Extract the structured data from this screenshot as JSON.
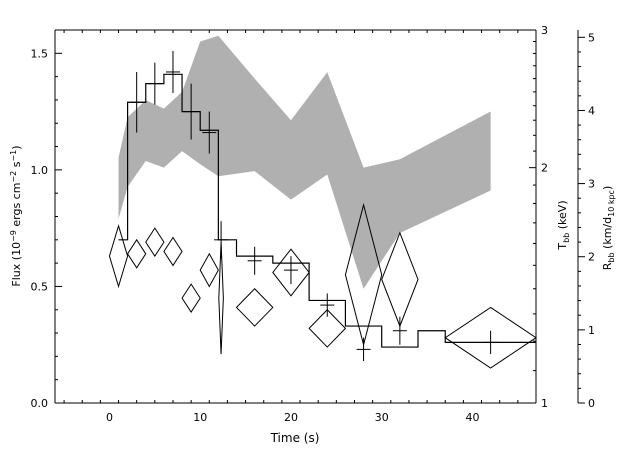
{
  "chart_data": {
    "type": "line",
    "xlabel": "Time (s)",
    "ylabel": "Flux (10^-9 ergs cm^-2 s^-1)",
    "right_label_1": "T_bb (keV)",
    "right_label_2": "R_bb (km/d_10 kpc)",
    "xlim": [
      -6,
      47
    ],
    "ylim": [
      0,
      1.6
    ],
    "x_ticks": [
      0,
      10,
      20,
      30,
      40
    ],
    "y_ticks": [
      0.0,
      0.5,
      1.0,
      1.5
    ],
    "y_ticks_text": [
      "0.0",
      "0.5",
      "1.0",
      "1.5"
    ],
    "tbb_axis": {
      "scale": "log",
      "range": [
        1,
        3
      ],
      "ticks": [
        1,
        2,
        3
      ]
    },
    "rbb_axis": {
      "range": [
        0,
        5.1
      ],
      "ticks": [
        0,
        1,
        2,
        3,
        4,
        5
      ]
    },
    "series": [
      {
        "kind": "step",
        "axis": "flux",
        "edges": [
          1,
          2,
          4,
          6,
          8,
          10,
          12,
          14,
          18,
          22,
          26,
          30,
          34,
          37,
          47
        ],
        "values": [
          0.7,
          1.29,
          1.37,
          1.41,
          1.25,
          1.17,
          0.7,
          0.63,
          0.6,
          0.44,
          0.33,
          0.24,
          0.31,
          0.26
        ]
      },
      {
        "kind": "errorbars",
        "axis": "flux",
        "x": [
          3,
          5,
          7,
          9,
          11,
          12.3,
          16,
          20,
          24,
          28,
          32,
          42
        ],
        "y": [
          1.29,
          1.37,
          1.42,
          1.25,
          1.16,
          0.7,
          0.61,
          0.57,
          0.42,
          0.23,
          0.31,
          0.26
        ],
        "yerr": [
          0.13,
          0.09,
          0.09,
          0.12,
          0.09,
          0.08,
          0.06,
          0.06,
          0.05,
          0.05,
          0.06,
          0.05
        ]
      },
      {
        "kind": "diamonds",
        "axis": "flux",
        "x": [
          1,
          3,
          5,
          7,
          9,
          11,
          12.3,
          16,
          20,
          24,
          28,
          32,
          42
        ],
        "y": [
          0.63,
          0.64,
          0.69,
          0.65,
          0.45,
          0.57,
          0.45,
          0.41,
          0.56,
          0.32,
          0.55,
          0.53,
          0.28
        ],
        "xerr": [
          1,
          1,
          1,
          1,
          1,
          1,
          0.25,
          2,
          2,
          2,
          2,
          2,
          5
        ],
        "yerr": [
          0.13,
          0.06,
          0.06,
          0.06,
          0.06,
          0.07,
          0.24,
          0.08,
          0.1,
          0.08,
          0.3,
          0.2,
          0.13
        ]
      },
      {
        "kind": "band",
        "axis": "tbb",
        "x": [
          1,
          2,
          4,
          6,
          8,
          10,
          12,
          16,
          20,
          24,
          28,
          32,
          42
        ],
        "lower": [
          1.72,
          1.89,
          2.04,
          2.0,
          2.1,
          2.02,
          1.95,
          1.98,
          1.82,
          1.96,
          1.4,
          1.65,
          1.87
        ],
        "upper": [
          2.06,
          2.32,
          2.44,
          2.38,
          2.5,
          2.9,
          2.95,
          2.6,
          2.3,
          2.65,
          2.0,
          2.05,
          2.36
        ]
      }
    ]
  }
}
